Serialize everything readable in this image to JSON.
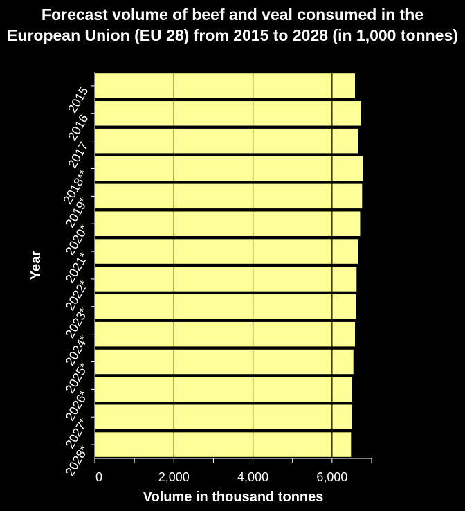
{
  "chart_data": {
    "type": "bar",
    "orientation": "horizontal",
    "title": "Forecast volume of beef and veal consumed in the European Union (EU 28) from 2015 to 2028 (in 1,000 tonnes)",
    "xlabel": "Volume in thousand tonnes",
    "ylabel": "Year",
    "categories": [
      "2015",
      "2016",
      "2017",
      "2018**",
      "2019*",
      "2020*",
      "2021*",
      "2022*",
      "2023*",
      "2024*",
      "2025*",
      "2026*",
      "2027*",
      "2028*"
    ],
    "values": [
      6580,
      6730,
      6650,
      6780,
      6760,
      6710,
      6650,
      6620,
      6600,
      6580,
      6540,
      6510,
      6500,
      6480
    ],
    "xlim": [
      0,
      7000
    ],
    "xticks": [
      0,
      2000,
      4000,
      6000
    ],
    "xtick_labels": [
      "0",
      "2,000",
      "4,000",
      "6,000"
    ],
    "legend": "none",
    "grid": true,
    "colors": {
      "background": "#000000",
      "plot_background": "#000000",
      "bar": "#ffff99",
      "text": "#ffffff",
      "grid": "#000000"
    }
  }
}
